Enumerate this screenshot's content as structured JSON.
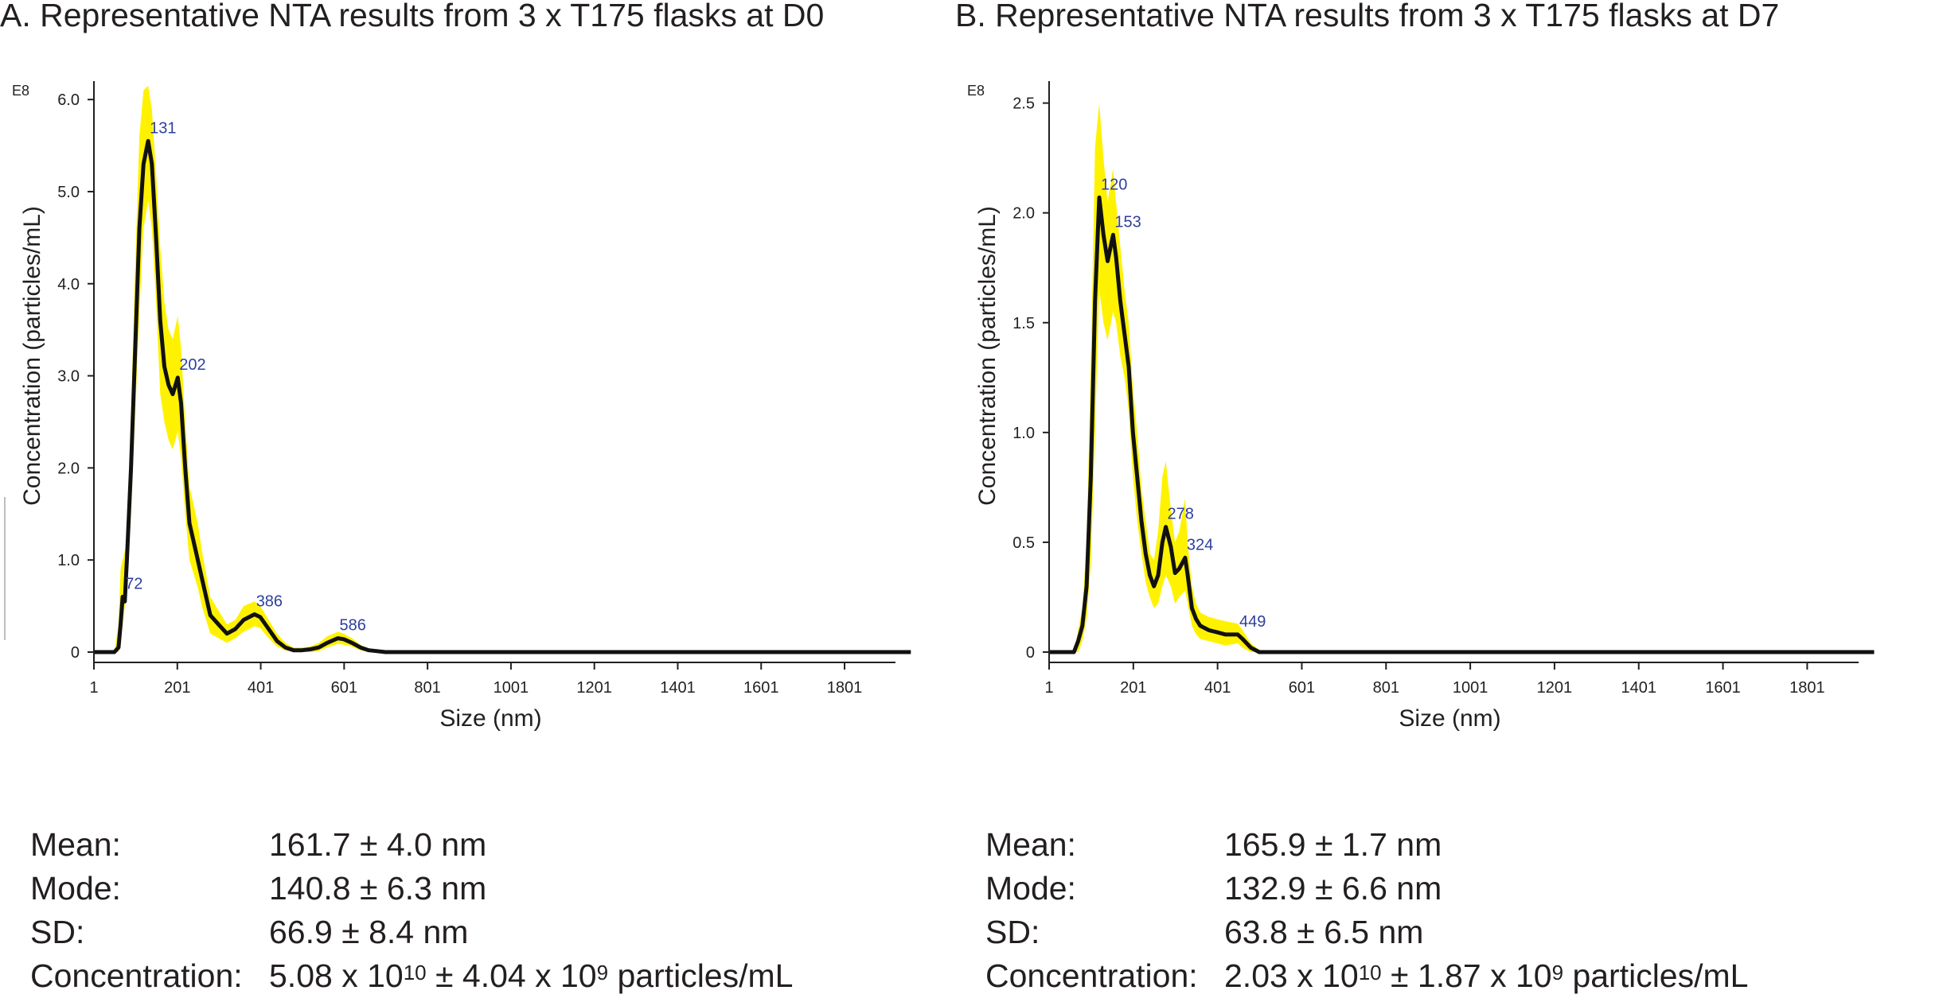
{
  "colors": {
    "band": "#fff200",
    "line": "#111111",
    "peak_label": "#2e3f9e",
    "axis": "#231f20"
  },
  "panels": [
    {
      "title": "A. Representative NTA results from 3 x T175 flasks at D0",
      "stats": {
        "mean": {
          "label": "Mean:",
          "value": "161.7 ± 4.0 nm"
        },
        "mode": {
          "label": "Mode:",
          "value": "140.8 ± 6.3 nm"
        },
        "sd": {
          "label": "SD:",
          "value": "66.9 ± 8.4 nm"
        },
        "concentration": {
          "label": "Concentration:",
          "mantissa": "5.08 x 10",
          "exp": "10",
          "err_mantissa": " ± 4.04 x 10",
          "err_exp": "9",
          "unit": " particles/mL"
        }
      }
    },
    {
      "title": "B. Representative NTA results from 3 x T175 flasks at D7",
      "stats": {
        "mean": {
          "label": "Mean:",
          "value": "165.9 ± 1.7 nm"
        },
        "mode": {
          "label": "Mode:",
          "value": "132.9 ± 6.6 nm"
        },
        "sd": {
          "label": "SD:",
          "value": "63.8 ± 6.5 nm"
        },
        "concentration": {
          "label": "Concentration:",
          "mantissa": "2.03 x 10",
          "exp": "10",
          "err_mantissa": " ± 1.87 x 10",
          "err_exp": "9",
          "unit": " particles/mL"
        }
      }
    }
  ],
  "chart_data": [
    {
      "type": "line",
      "title": "A. Representative NTA results from 3 x T175 flasks at D0",
      "xlabel": "Size (nm)",
      "ylabel": "Concentration (particles/mL)",
      "y_scale_label": "E8",
      "xlim": [
        1,
        2000
      ],
      "ylim": [
        0,
        6.2
      ],
      "x_ticks": [
        1,
        201,
        401,
        601,
        801,
        1001,
        1201,
        1401,
        1601,
        1801
      ],
      "y_ticks": [
        0,
        1.0,
        2.0,
        3.0,
        4.0,
        5.0,
        6.0
      ],
      "y_tick_labels": [
        "0",
        "1.0",
        "2.0",
        "3.0",
        "4.0",
        "5.0",
        "6.0"
      ],
      "series": [
        {
          "name": "mean",
          "x": [
            1,
            50,
            60,
            65,
            70,
            72,
            75,
            80,
            90,
            100,
            110,
            120,
            131,
            140,
            150,
            160,
            170,
            180,
            190,
            202,
            210,
            220,
            230,
            250,
            260,
            280,
            300,
            320,
            340,
            360,
            386,
            400,
            420,
            440,
            460,
            480,
            500,
            520,
            540,
            560,
            586,
            600,
            620,
            640,
            660,
            680,
            700,
            800,
            1000,
            2000
          ],
          "y": [
            0,
            0,
            0.05,
            0.3,
            0.6,
            0.6,
            0.55,
            1.0,
            2.0,
            3.3,
            4.6,
            5.3,
            5.55,
            5.3,
            4.5,
            3.6,
            3.1,
            2.9,
            2.8,
            2.98,
            2.7,
            2.0,
            1.4,
            1.0,
            0.8,
            0.4,
            0.3,
            0.2,
            0.25,
            0.35,
            0.41,
            0.38,
            0.25,
            0.12,
            0.05,
            0.02,
            0.02,
            0.03,
            0.05,
            0.1,
            0.15,
            0.14,
            0.1,
            0.05,
            0.02,
            0.01,
            0,
            0,
            0,
            0
          ]
        },
        {
          "name": "upper",
          "x": [
            1,
            50,
            60,
            65,
            70,
            80,
            90,
            100,
            110,
            120,
            131,
            140,
            150,
            160,
            170,
            180,
            190,
            202,
            210,
            220,
            230,
            250,
            260,
            280,
            300,
            320,
            340,
            360,
            386,
            400,
            420,
            440,
            460,
            480,
            500,
            520,
            540,
            560,
            586,
            600,
            620,
            640,
            660,
            680,
            700,
            800,
            1000,
            2000
          ],
          "y": [
            0,
            0,
            0.3,
            0.9,
            1.0,
            1.2,
            2.6,
            4.2,
            5.6,
            6.1,
            6.15,
            5.9,
            5.2,
            4.4,
            3.8,
            3.5,
            3.4,
            3.65,
            3.3,
            2.5,
            1.8,
            1.4,
            1.1,
            0.6,
            0.45,
            0.3,
            0.35,
            0.5,
            0.55,
            0.5,
            0.35,
            0.2,
            0.1,
            0.05,
            0.05,
            0.06,
            0.1,
            0.17,
            0.22,
            0.2,
            0.15,
            0.08,
            0.03,
            0.01,
            0,
            0,
            0,
            0
          ]
        },
        {
          "name": "lower",
          "x": [
            1,
            50,
            60,
            65,
            70,
            80,
            90,
            100,
            110,
            120,
            131,
            140,
            150,
            160,
            170,
            180,
            190,
            202,
            210,
            220,
            230,
            250,
            260,
            280,
            300,
            320,
            340,
            360,
            386,
            400,
            420,
            440,
            460,
            480,
            500,
            520,
            540,
            560,
            586,
            600,
            620,
            640,
            660,
            680,
            700,
            800,
            1000,
            2000
          ],
          "y": [
            0,
            0,
            0,
            0.1,
            0.3,
            0.7,
            1.5,
            2.6,
            3.7,
            4.6,
            4.9,
            4.6,
            3.8,
            2.8,
            2.5,
            2.3,
            2.2,
            2.4,
            2.1,
            1.5,
            1.0,
            0.7,
            0.5,
            0.2,
            0.15,
            0.1,
            0.15,
            0.22,
            0.28,
            0.26,
            0.15,
            0.06,
            0.02,
            0,
            0,
            0,
            0.01,
            0.05,
            0.09,
            0.08,
            0.06,
            0.02,
            0,
            0,
            0,
            0,
            0,
            0
          ]
        }
      ],
      "peaks": [
        {
          "x": 72,
          "y": 0.6,
          "label": "72"
        },
        {
          "x": 131,
          "y": 5.55,
          "label": "131"
        },
        {
          "x": 202,
          "y": 2.98,
          "label": "202"
        },
        {
          "x": 386,
          "y": 0.41,
          "label": "386"
        },
        {
          "x": 586,
          "y": 0.15,
          "label": "586"
        }
      ]
    },
    {
      "type": "line",
      "title": "B. Representative NTA results from 3 x T175 flasks at D7",
      "xlabel": "Size (nm)",
      "ylabel": "Concentration (particles/mL)",
      "y_scale_label": "E8",
      "xlim": [
        1,
        2000
      ],
      "ylim": [
        0,
        2.6
      ],
      "x_ticks": [
        1,
        201,
        401,
        601,
        801,
        1001,
        1201,
        1401,
        1601,
        1801
      ],
      "y_ticks": [
        0,
        0.5,
        1.0,
        1.5,
        2.0,
        2.5
      ],
      "y_tick_labels": [
        "0",
        "0.5",
        "1.0",
        "1.5",
        "2.0",
        "2.5"
      ],
      "series": [
        {
          "name": "mean",
          "x": [
            1,
            60,
            70,
            80,
            90,
            100,
            110,
            120,
            130,
            140,
            153,
            160,
            170,
            180,
            190,
            200,
            210,
            220,
            230,
            240,
            250,
            260,
            270,
            278,
            290,
            300,
            310,
            324,
            330,
            340,
            350,
            360,
            380,
            400,
            420,
            449,
            460,
            480,
            500,
            520,
            600,
            2000
          ],
          "y": [
            0,
            0,
            0.05,
            0.12,
            0.3,
            0.8,
            1.6,
            2.07,
            1.9,
            1.78,
            1.9,
            1.8,
            1.6,
            1.45,
            1.3,
            1.0,
            0.8,
            0.6,
            0.45,
            0.35,
            0.3,
            0.35,
            0.5,
            0.57,
            0.48,
            0.36,
            0.38,
            0.43,
            0.35,
            0.2,
            0.15,
            0.12,
            0.1,
            0.09,
            0.08,
            0.08,
            0.06,
            0.02,
            0,
            0,
            0,
            0
          ]
        },
        {
          "name": "upper",
          "x": [
            1,
            60,
            70,
            80,
            90,
            100,
            110,
            120,
            130,
            140,
            153,
            160,
            170,
            180,
            190,
            200,
            210,
            220,
            230,
            240,
            250,
            260,
            270,
            278,
            290,
            300,
            310,
            324,
            330,
            340,
            350,
            360,
            380,
            400,
            420,
            449,
            460,
            480,
            500,
            520,
            600,
            2000
          ],
          "y": [
            0,
            0,
            0.1,
            0.2,
            0.5,
            1.3,
            2.3,
            2.5,
            2.25,
            2.05,
            2.2,
            2.05,
            1.85,
            1.65,
            1.5,
            1.2,
            1.0,
            0.75,
            0.6,
            0.45,
            0.42,
            0.55,
            0.8,
            0.87,
            0.65,
            0.5,
            0.55,
            0.7,
            0.5,
            0.3,
            0.22,
            0.18,
            0.16,
            0.15,
            0.14,
            0.13,
            0.1,
            0.04,
            0.01,
            0,
            0,
            0
          ]
        },
        {
          "name": "lower",
          "x": [
            1,
            60,
            70,
            80,
            90,
            100,
            110,
            120,
            130,
            140,
            153,
            160,
            170,
            180,
            190,
            200,
            210,
            220,
            230,
            240,
            250,
            260,
            270,
            278,
            290,
            300,
            310,
            324,
            330,
            340,
            350,
            360,
            380,
            400,
            420,
            449,
            460,
            480,
            500,
            520,
            600,
            2000
          ],
          "y": [
            0,
            0,
            0,
            0.05,
            0.15,
            0.4,
            1.0,
            1.65,
            1.5,
            1.42,
            1.55,
            1.5,
            1.35,
            1.25,
            1.1,
            0.8,
            0.6,
            0.45,
            0.32,
            0.25,
            0.2,
            0.22,
            0.3,
            0.35,
            0.3,
            0.22,
            0.25,
            0.28,
            0.22,
            0.12,
            0.08,
            0.06,
            0.05,
            0.04,
            0.03,
            0.04,
            0.02,
            0,
            0,
            0,
            0,
            0
          ]
        }
      ],
      "peaks": [
        {
          "x": 120,
          "y": 2.07,
          "label": "120"
        },
        {
          "x": 153,
          "y": 1.9,
          "label": "153"
        },
        {
          "x": 278,
          "y": 0.57,
          "label": "278"
        },
        {
          "x": 324,
          "y": 0.43,
          "label": "324"
        },
        {
          "x": 449,
          "y": 0.08,
          "label": "449"
        }
      ]
    }
  ]
}
